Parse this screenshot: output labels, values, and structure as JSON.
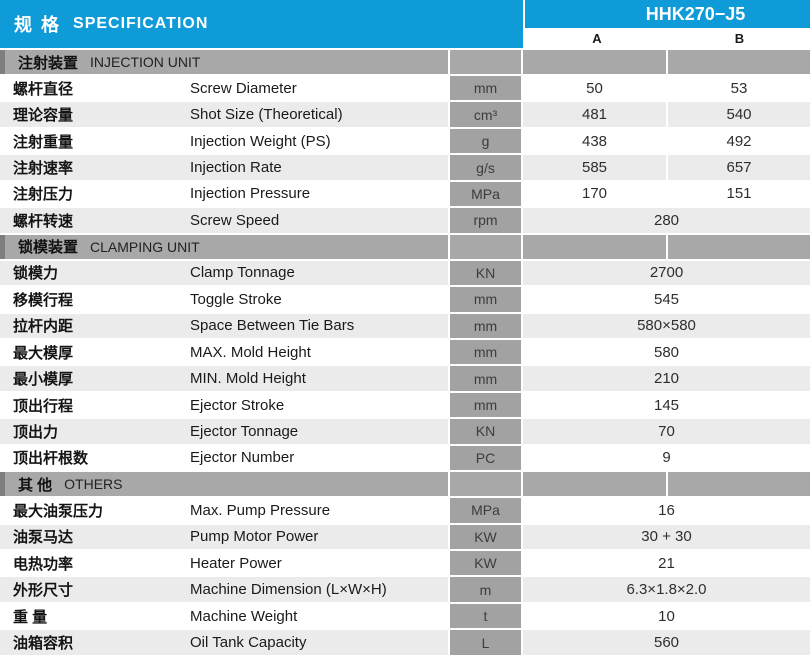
{
  "colors": {
    "blue": "#0E9BD8",
    "section_bg": "#A8A8A8",
    "section_accent": "#7E7E7E",
    "unit_bg": "#A2A2A2",
    "row_alt": "#EBEBEB"
  },
  "header": {
    "title_zh": "规 格",
    "title_en": "SPECIFICATION",
    "model": "HHK270−J5",
    "col_a": "A",
    "col_b": "B"
  },
  "sections": [
    {
      "zh": "注射装置",
      "en": "INJECTION UNIT",
      "zebra_start": "light",
      "rows": [
        {
          "zh": "螺杆直径",
          "en": "Screw Diameter",
          "unit": "mm",
          "a": "50",
          "b": "53"
        },
        {
          "zh": "理论容量",
          "en": "Shot Size (Theoretical)",
          "unit": "cm³",
          "a": "481",
          "b": "540"
        },
        {
          "zh": "注射重量",
          "en": "Injection Weight (PS)",
          "unit": "g",
          "a": "438",
          "b": "492"
        },
        {
          "zh": "注射速率",
          "en": "Injection Rate",
          "unit": "g/s",
          "a": "585",
          "b": "657"
        },
        {
          "zh": "注射压力",
          "en": "Injection Pressure",
          "unit": "MPa",
          "a": "170",
          "b": "151"
        },
        {
          "zh": "螺杆转速",
          "en": "Screw Speed",
          "unit": "rpm",
          "value": "280"
        }
      ]
    },
    {
      "zh": "锁模装置",
      "en": "CLAMPING UNIT",
      "zebra_start": "gray",
      "rows": [
        {
          "zh": "锁模力",
          "en": "Clamp Tonnage",
          "unit": "KN",
          "value": "2700"
        },
        {
          "zh": "移模行程",
          "en": "Toggle Stroke",
          "unit": "mm",
          "value": "545"
        },
        {
          "zh": "拉杆内距",
          "en": "Space Between Tie Bars",
          "unit": "mm",
          "value": "580×580"
        },
        {
          "zh": "最大模厚",
          "en": "MAX. Mold Height",
          "unit": "mm",
          "value": "580"
        },
        {
          "zh": "最小模厚",
          "en": "MIN. Mold Height",
          "unit": "mm",
          "value": "210"
        },
        {
          "zh": "顶出行程",
          "en": "Ejector Stroke",
          "unit": "mm",
          "value": "145"
        },
        {
          "zh": "顶出力",
          "en": "Ejector Tonnage",
          "unit": "KN",
          "value": "70"
        },
        {
          "zh": "顶出杆根数",
          "en": "Ejector Number",
          "unit": "PC",
          "value": "9"
        }
      ]
    },
    {
      "zh": "其 他",
      "en": "OTHERS",
      "zebra_start": "light",
      "rows": [
        {
          "zh": "最大油泵压力",
          "en": "Max. Pump Pressure",
          "unit": "MPa",
          "value": "16"
        },
        {
          "zh": "油泵马达",
          "en": "Pump Motor Power",
          "unit": "KW",
          "value": "30 + 30"
        },
        {
          "zh": "电热功率",
          "en": "Heater Power",
          "unit": "KW",
          "value": "21"
        },
        {
          "zh": "外形尺寸",
          "en": "Machine Dimension (L×W×H)",
          "unit": "m",
          "value": "6.3×1.8×2.0"
        },
        {
          "zh": "重 量",
          "en": "Machine Weight",
          "unit": "t",
          "value": "10"
        },
        {
          "zh": "油箱容积",
          "en": "Oil Tank Capacity",
          "unit": "L",
          "value": "560"
        }
      ]
    }
  ]
}
